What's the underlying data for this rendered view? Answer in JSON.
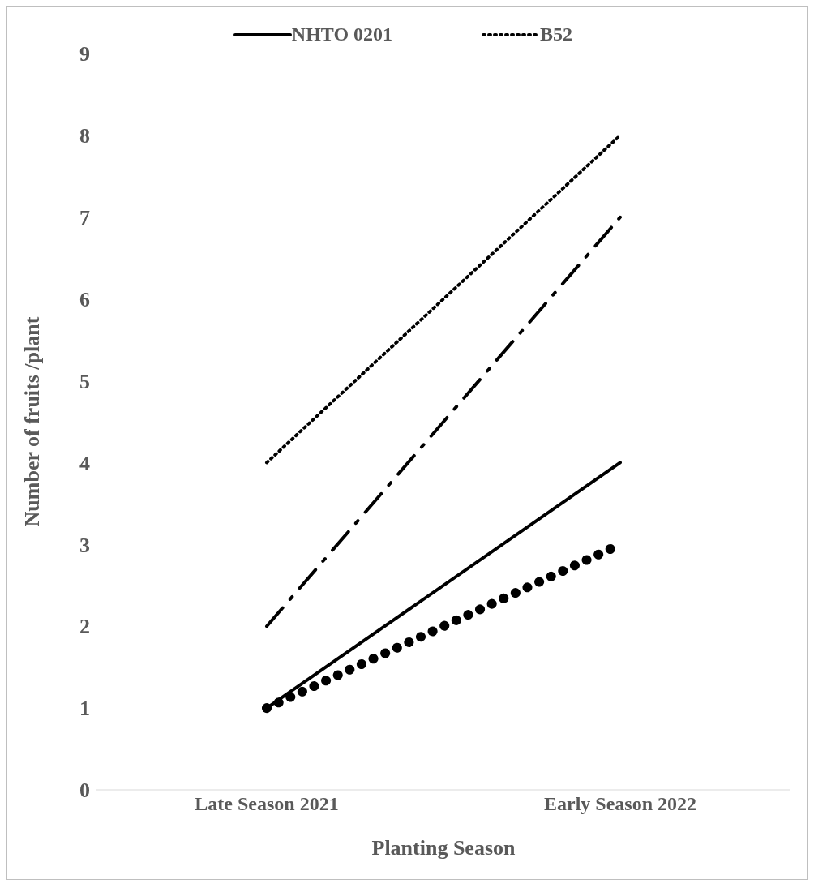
{
  "chart_data": {
    "type": "line",
    "xlabel": "Planting Season",
    "ylabel": "Number of fruits /plant",
    "categories": [
      "Late Season 2021",
      "Early Season 2022"
    ],
    "series": [
      {
        "name": "NHTO 0201",
        "color": "#000000",
        "line_style": "solid",
        "values": [
          1,
          4
        ]
      },
      {
        "name": "B52",
        "color": "#000000",
        "line_style": "dotted",
        "values": [
          4,
          8
        ]
      },
      {
        "color": "#000000",
        "line_style": "dashed",
        "values": [
          2,
          7
        ]
      },
      {
        "color": "#000000",
        "line_style": "dotted",
        "values": [
          1,
          3
        ]
      }
    ],
    "ylim": [
      0,
      9
    ],
    "yticks": [
      0,
      1,
      2,
      3,
      4,
      5,
      6,
      7,
      8,
      9
    ],
    "legend": "top",
    "marker": "none"
  }
}
